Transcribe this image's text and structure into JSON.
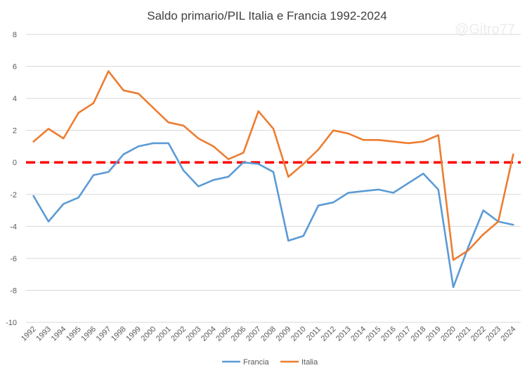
{
  "chart_data": {
    "type": "line",
    "title": "Saldo primario/PIL Italia e Francia 1992-2024",
    "watermark": "@Gitro77",
    "xlabel": "",
    "ylabel": "",
    "ylim": [
      -10,
      8
    ],
    "yticks": [
      -10,
      -8,
      -6,
      -4,
      -2,
      0,
      2,
      4,
      6,
      8
    ],
    "grid": true,
    "legend_position": "bottom",
    "categories": [
      "1992",
      "1993",
      "1994",
      "1995",
      "1996",
      "1997",
      "1998",
      "1999",
      "2000",
      "2001",
      "2002",
      "2003",
      "2004",
      "2005",
      "2006",
      "2007",
      "2008",
      "2009",
      "2010",
      "2011",
      "2012",
      "2013",
      "2014",
      "2015",
      "2016",
      "2017",
      "2018",
      "2019",
      "2020",
      "2021",
      "2022",
      "2023",
      "2024"
    ],
    "series": [
      {
        "name": "Francia",
        "color": "#5b9bd5",
        "values": [
          -2.1,
          -3.7,
          -2.6,
          -2.2,
          -0.8,
          -0.6,
          0.5,
          1.0,
          1.2,
          1.2,
          -0.5,
          -1.5,
          -1.1,
          -0.9,
          0.0,
          -0.1,
          -0.6,
          -4.9,
          -4.6,
          -2.7,
          -2.5,
          -1.9,
          -1.8,
          -1.7,
          -1.9,
          -1.3,
          -0.7,
          -1.7,
          -7.8,
          -5.3,
          -3.0,
          -3.7,
          -3.9
        ]
      },
      {
        "name": "Italia",
        "color": "#ed7d31",
        "values": [
          1.3,
          2.1,
          1.5,
          3.1,
          3.7,
          5.7,
          4.5,
          4.3,
          3.4,
          2.5,
          2.3,
          1.5,
          1.0,
          0.2,
          0.6,
          3.2,
          2.1,
          -0.9,
          -0.1,
          0.8,
          2.0,
          1.8,
          1.4,
          1.4,
          1.3,
          1.2,
          1.3,
          1.7,
          -6.1,
          -5.5,
          -4.5,
          -3.7,
          0.5
        ]
      }
    ],
    "reference_line": {
      "value": 0,
      "color": "#ff0000",
      "style": "dashed"
    }
  }
}
